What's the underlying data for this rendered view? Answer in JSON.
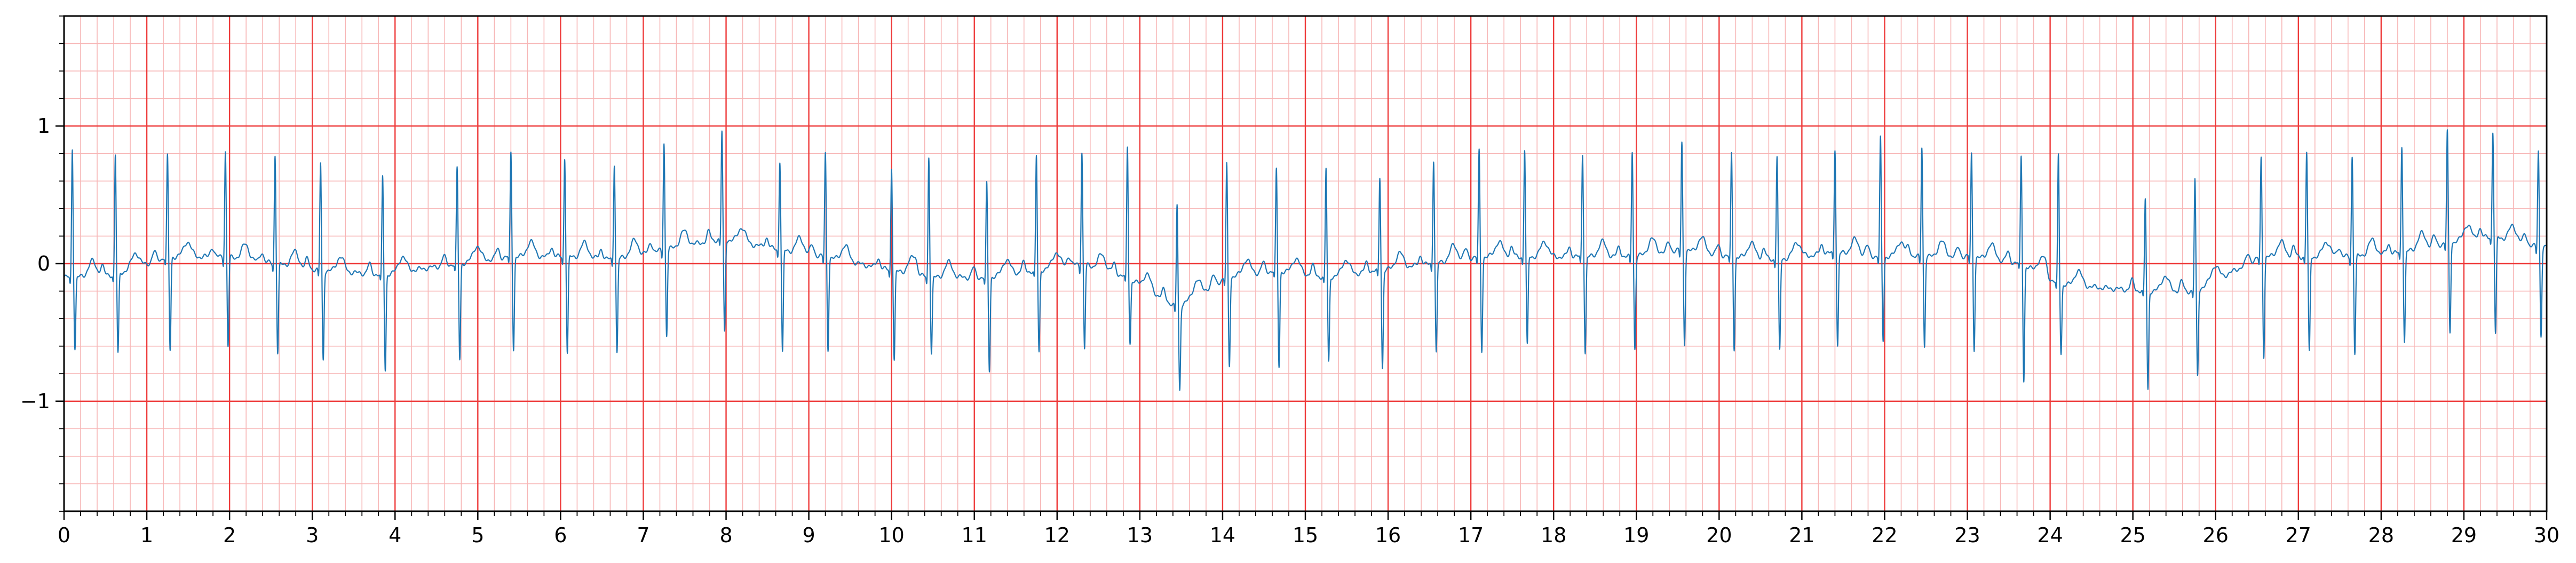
{
  "chart_data": {
    "type": "line",
    "title": "",
    "xlabel": "",
    "ylabel": "",
    "xlim": [
      0,
      30
    ],
    "ylim": [
      -1.8,
      1.8
    ],
    "x_ticks": [
      0,
      1,
      2,
      3,
      4,
      5,
      6,
      7,
      8,
      9,
      10,
      11,
      12,
      13,
      14,
      15,
      16,
      17,
      18,
      19,
      20,
      21,
      22,
      23,
      24,
      25,
      26,
      27,
      28,
      29,
      30
    ],
    "x_tick_labels": [
      "0",
      "1",
      "2",
      "3",
      "4",
      "5",
      "6",
      "7",
      "8",
      "9",
      "10",
      "11",
      "12",
      "13",
      "14",
      "15",
      "16",
      "17",
      "18",
      "19",
      "20",
      "21",
      "22",
      "23",
      "24",
      "25",
      "26",
      "27",
      "28",
      "29",
      "30"
    ],
    "y_ticks": [
      -1,
      0,
      1
    ],
    "y_tick_labels": [
      "−1",
      "0",
      "1"
    ],
    "grid": {
      "major": true,
      "minor": true,
      "major_x_step": 1,
      "major_y_step": 1,
      "minor_x_step": 0.2,
      "minor_y_step": 0.2,
      "major_color": "#ee3b3b",
      "minor_color": "#f7b6b6"
    },
    "series": [
      {
        "line_color": "#1f77b4",
        "beats": [
          {
            "t": 0.1,
            "r": 0.78,
            "s": -0.62,
            "base": -0.1
          },
          {
            "t": 0.62,
            "r": 0.73,
            "s": -0.66,
            "base": -0.08
          },
          {
            "t": 1.25,
            "r": 0.72,
            "s": -0.63,
            "base": 0.05
          },
          {
            "t": 1.95,
            "r": 0.76,
            "s": -0.6,
            "base": 0.05
          },
          {
            "t": 2.55,
            "r": 0.73,
            "s": -0.65,
            "base": 0.0
          },
          {
            "t": 3.1,
            "r": 0.67,
            "s": -0.7,
            "base": -0.05
          },
          {
            "t": 3.85,
            "r": 0.57,
            "s": -0.78,
            "base": -0.08
          },
          {
            "t": 4.75,
            "r": 0.63,
            "s": -0.7,
            "base": 0.0
          },
          {
            "t": 5.4,
            "r": 0.75,
            "s": -0.62,
            "base": 0.05
          },
          {
            "t": 6.05,
            "r": 0.71,
            "s": -0.65,
            "base": 0.05
          },
          {
            "t": 6.65,
            "r": 0.67,
            "s": -0.65,
            "base": 0.03
          },
          {
            "t": 7.25,
            "r": 0.82,
            "s": -0.52,
            "base": 0.1
          },
          {
            "t": 7.95,
            "r": 0.9,
            "s": -0.5,
            "base": 0.18
          },
          {
            "t": 8.65,
            "r": 0.69,
            "s": -0.65,
            "base": 0.1
          },
          {
            "t": 9.2,
            "r": 0.74,
            "s": -0.62,
            "base": 0.05
          },
          {
            "t": 10.0,
            "r": 0.64,
            "s": -0.7,
            "base": -0.05
          },
          {
            "t": 10.45,
            "r": 0.72,
            "s": -0.65,
            "base": -0.1
          },
          {
            "t": 11.15,
            "r": 0.52,
            "s": -0.78,
            "base": -0.1
          },
          {
            "t": 11.75,
            "r": 0.72,
            "s": -0.65,
            "base": -0.05
          },
          {
            "t": 12.3,
            "r": 0.75,
            "s": -0.62,
            "base": 0.0
          },
          {
            "t": 12.85,
            "r": 0.79,
            "s": -0.58,
            "base": -0.1
          },
          {
            "t": 13.45,
            "r": 0.37,
            "s": -0.92,
            "base": -0.32
          },
          {
            "t": 14.05,
            "r": 0.66,
            "s": -0.74,
            "base": -0.1
          },
          {
            "t": 14.65,
            "r": 0.62,
            "s": -0.75,
            "base": -0.05
          },
          {
            "t": 15.25,
            "r": 0.63,
            "s": -0.72,
            "base": -0.1
          },
          {
            "t": 15.9,
            "r": 0.57,
            "s": -0.76,
            "base": -0.05
          },
          {
            "t": 16.55,
            "r": 0.7,
            "s": -0.65,
            "base": 0.0
          },
          {
            "t": 17.1,
            "r": 0.76,
            "s": -0.63,
            "base": 0.05
          },
          {
            "t": 17.65,
            "r": 0.77,
            "s": -0.6,
            "base": 0.05
          },
          {
            "t": 18.35,
            "r": 0.74,
            "s": -0.65,
            "base": 0.05
          },
          {
            "t": 18.95,
            "r": 0.76,
            "s": -0.62,
            "base": 0.05
          },
          {
            "t": 19.55,
            "r": 0.82,
            "s": -0.58,
            "base": 0.1
          },
          {
            "t": 20.15,
            "r": 0.74,
            "s": -0.62,
            "base": 0.05
          },
          {
            "t": 20.7,
            "r": 0.72,
            "s": -0.64,
            "base": 0.03
          },
          {
            "t": 21.4,
            "r": 0.78,
            "s": -0.6,
            "base": 0.08
          },
          {
            "t": 21.95,
            "r": 0.85,
            "s": -0.56,
            "base": 0.05
          },
          {
            "t": 22.45,
            "r": 0.79,
            "s": -0.6,
            "base": 0.05
          },
          {
            "t": 23.05,
            "r": 0.74,
            "s": -0.62,
            "base": 0.05
          },
          {
            "t": 23.65,
            "r": 0.72,
            "s": -0.85,
            "base": 0.0
          },
          {
            "t": 24.1,
            "r": 0.73,
            "s": -0.65,
            "base": -0.15
          },
          {
            "t": 25.15,
            "r": 0.41,
            "s": -0.92,
            "base": -0.2
          },
          {
            "t": 25.75,
            "r": 0.55,
            "s": -0.82,
            "base": -0.2
          },
          {
            "t": 26.55,
            "r": 0.71,
            "s": -0.67,
            "base": 0.05
          },
          {
            "t": 27.1,
            "r": 0.75,
            "s": -0.65,
            "base": 0.05
          },
          {
            "t": 27.65,
            "r": 0.72,
            "s": -0.65,
            "base": 0.05
          },
          {
            "t": 28.25,
            "r": 0.8,
            "s": -0.57,
            "base": 0.08
          },
          {
            "t": 28.8,
            "r": 0.9,
            "s": -0.5,
            "base": 0.15
          },
          {
            "t": 29.35,
            "r": 0.9,
            "s": -0.52,
            "base": 0.2
          },
          {
            "t": 29.9,
            "r": 0.76,
            "s": -0.52,
            "base": 0.12
          }
        ]
      }
    ]
  }
}
